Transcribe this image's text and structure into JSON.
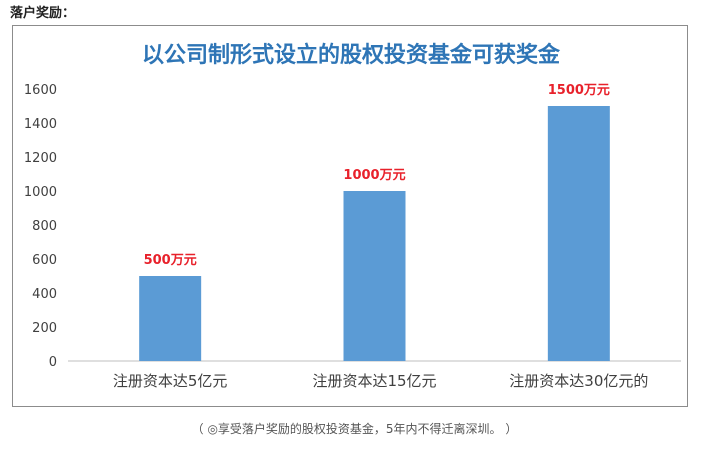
{
  "heading": "落户奖励：",
  "caption": "（ ◎享受落户奖励的股权投资基金，5年内不得迁离深圳。 ）",
  "colors": {
    "bar": "#5B9BD5",
    "title": "#2E75B6",
    "data_label": "#E8212B",
    "axis_text": "#404040"
  },
  "chart_data": {
    "type": "bar",
    "title": "以公司制形式设立的股权投资基金可获奖金",
    "xlabel": "",
    "ylabel": "",
    "categories": [
      "注册资本达5亿元",
      "注册资本达15亿元",
      "注册资本达30亿元的"
    ],
    "values": [
      500,
      1000,
      1500
    ],
    "data_labels": [
      "500万元",
      "1000万元",
      "1500万元"
    ],
    "ylim": [
      0,
      1600
    ],
    "yticks": [
      "0",
      "200",
      "400",
      "600",
      "800",
      "1000",
      "1200",
      "1400",
      "1600"
    ],
    "grid": false,
    "legend": "none"
  }
}
